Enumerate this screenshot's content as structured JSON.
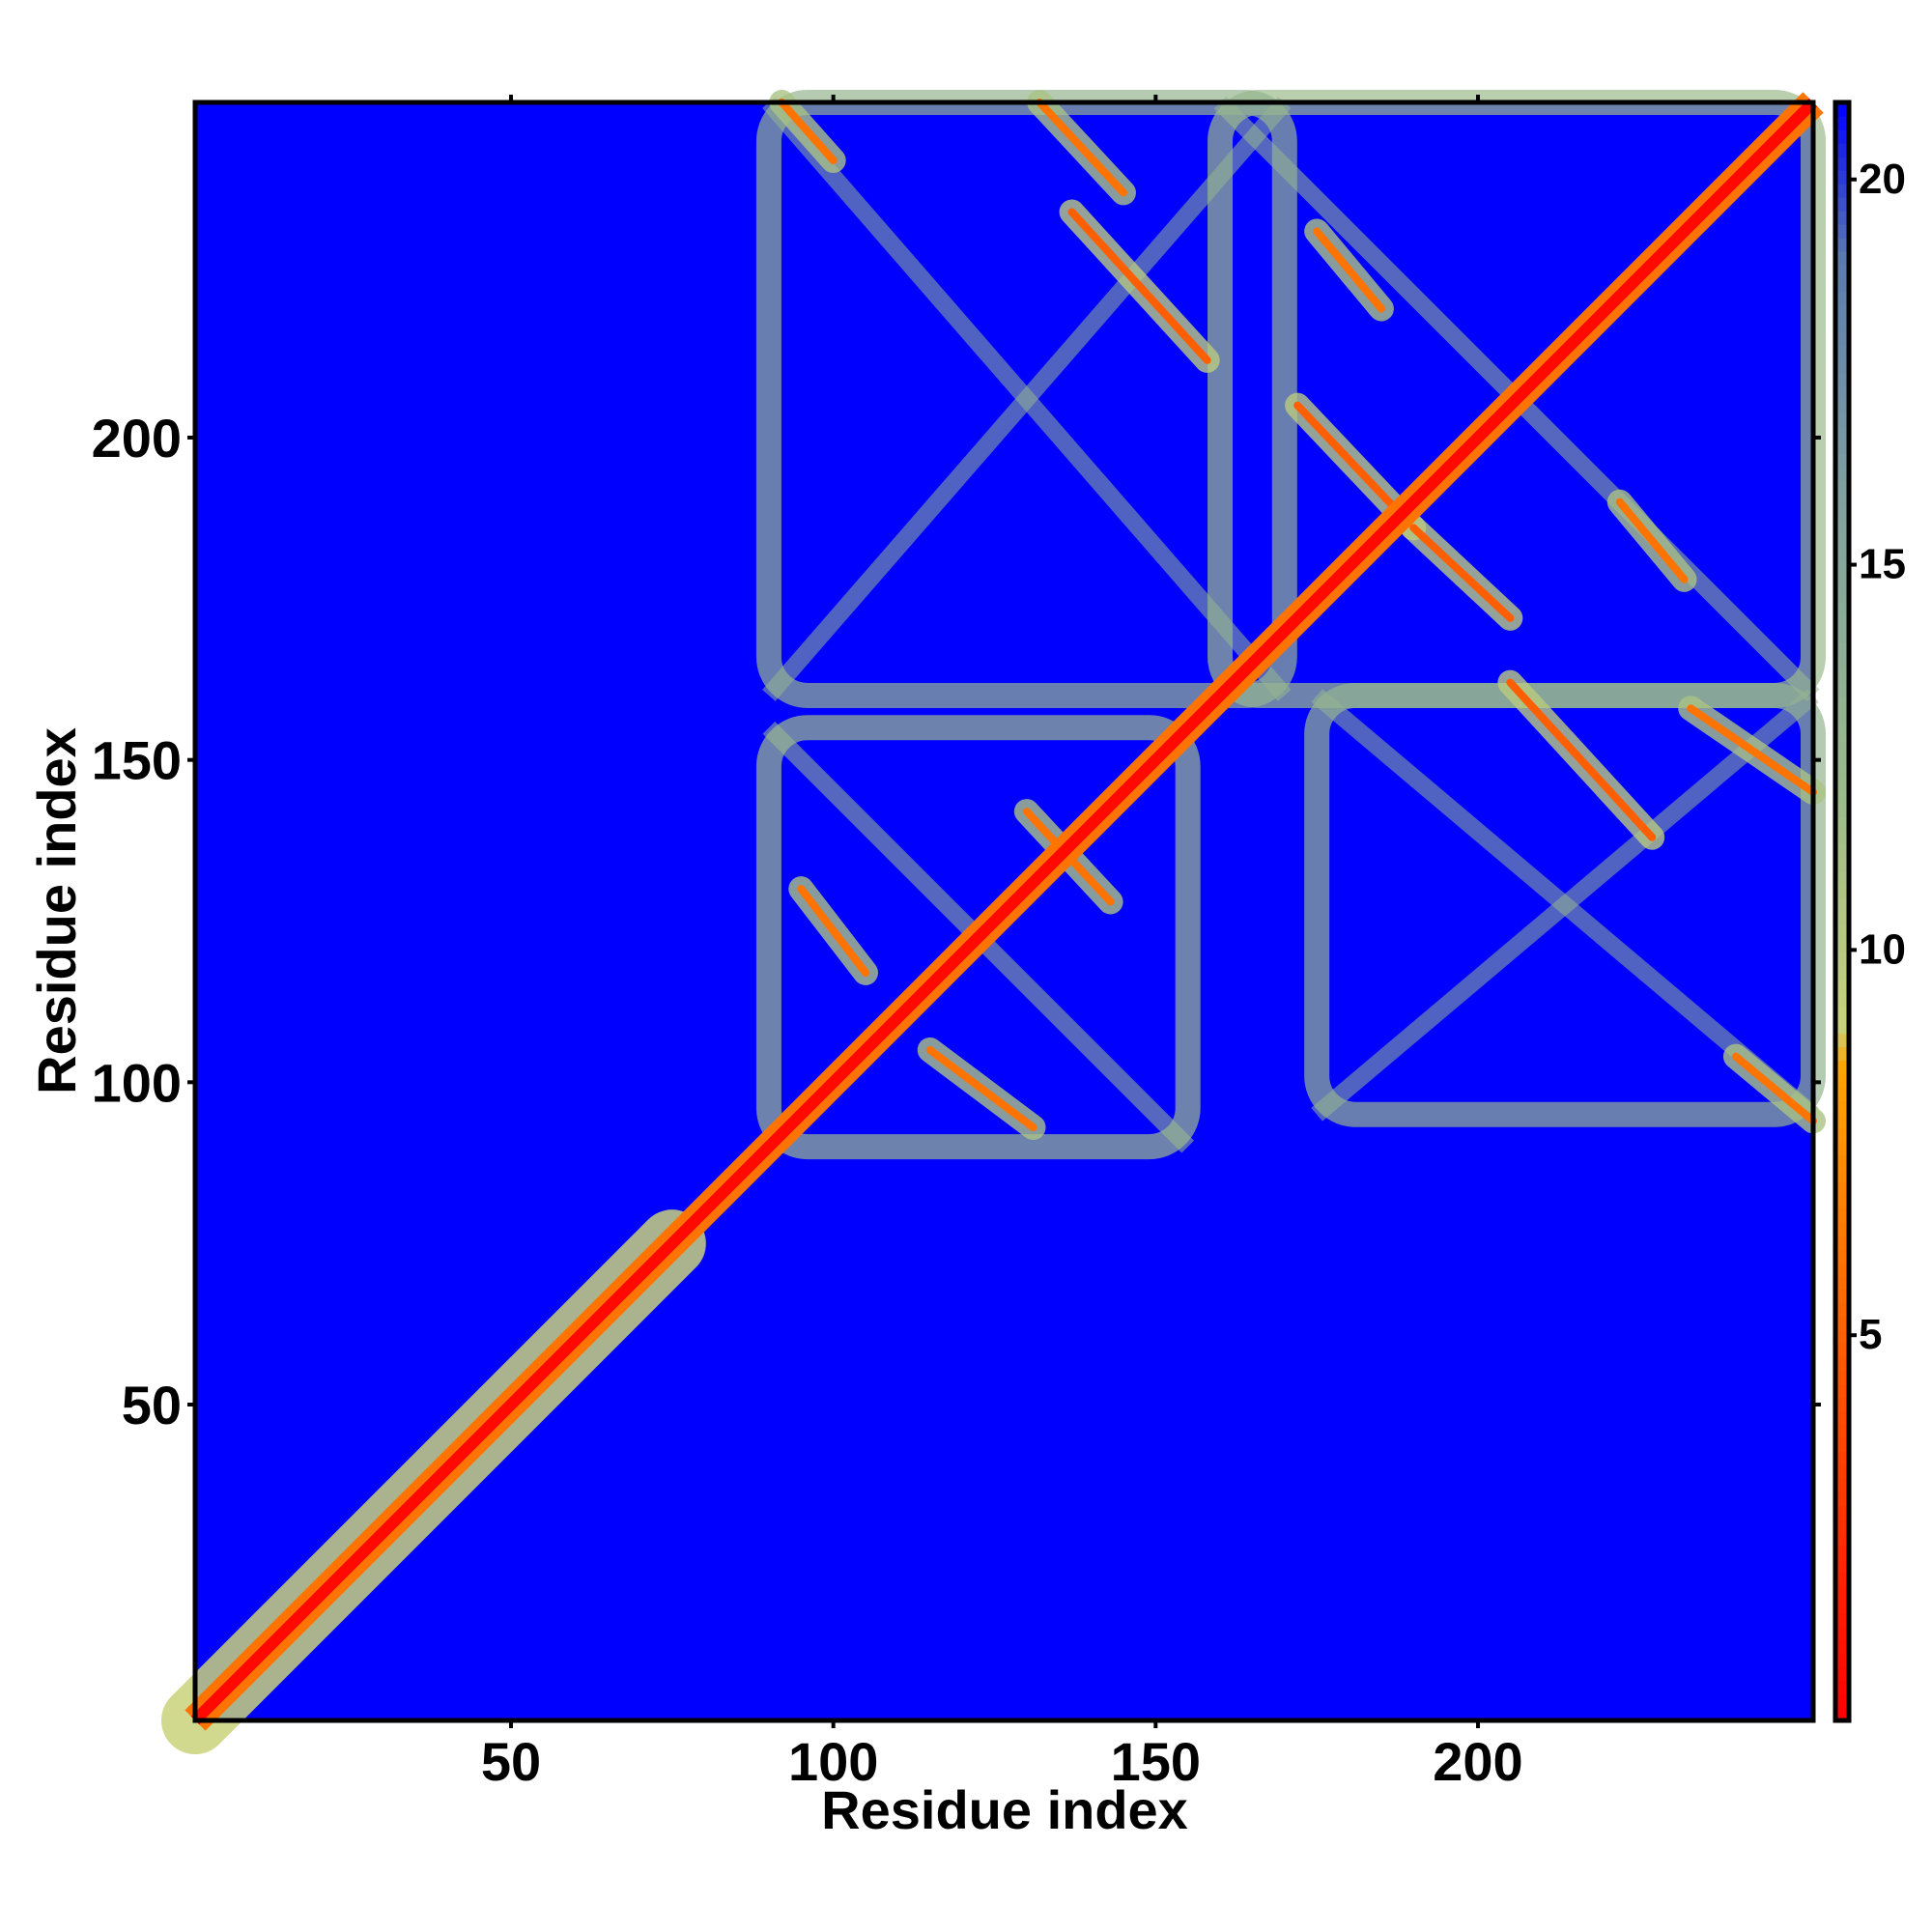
{
  "chart_data": {
    "type": "heatmap",
    "title": "",
    "xlabel": "Residue index",
    "ylabel": "Residue index",
    "n_residues": 252,
    "xlim": [
      1,
      252
    ],
    "ylim": [
      1,
      252
    ],
    "x_ticks": [
      50,
      100,
      150,
      200
    ],
    "y_ticks": [
      50,
      100,
      150,
      200
    ],
    "x_tick_labels": [
      "50",
      "100",
      "150",
      "200"
    ],
    "y_tick_labels": [
      "50",
      "100",
      "150",
      "200"
    ],
    "value_range": [
      0,
      21
    ],
    "colorbar": {
      "ticks": [
        5,
        10,
        15,
        20
      ],
      "tick_labels": [
        "5",
        "10",
        "15",
        "20"
      ],
      "range": [
        0,
        21
      ],
      "stops": [
        {
          "value": 0,
          "color": "#ff0000"
        },
        {
          "value": 4.5,
          "color": "#ff5500"
        },
        {
          "value": 8.5,
          "color": "#ffa500"
        },
        {
          "value": 9.0,
          "color": "#c8d27a"
        },
        {
          "value": 12.0,
          "color": "#9bbb8a"
        },
        {
          "value": 16.0,
          "color": "#7fa0a0"
        },
        {
          "value": 19.0,
          "color": "#5a7bb0"
        },
        {
          "value": 21,
          "color": "#0000ff"
        }
      ]
    },
    "background_color": "#0000ff",
    "regions": [
      {
        "name": "diagonal",
        "x_range": [
          1,
          252
        ],
        "y_range": [
          1,
          252
        ],
        "value": 0.5
      },
      {
        "name": "near-diagonal-band",
        "x_range": [
          1,
          75
        ],
        "y_range": [
          1,
          75
        ],
        "value": 9
      },
      {
        "name": "domain-1-block",
        "x_range": [
          90,
          155
        ],
        "y_range": [
          90,
          155
        ],
        "value": 12
      },
      {
        "name": "domain-2-block",
        "x_range": [
          160,
          252
        ],
        "y_range": [
          160,
          252
        ],
        "value": 12
      },
      {
        "name": "inter-domain-upper",
        "x_range": [
          90,
          170
        ],
        "y_range": [
          160,
          252
        ],
        "value": 13
      },
      {
        "name": "inter-domain-lower",
        "x_range": [
          175,
          252
        ],
        "y_range": [
          95,
          160
        ],
        "value": 13
      }
    ],
    "contact_lines": [
      {
        "from": [
          92,
          252
        ],
        "to": [
          100,
          243
        ],
        "value": 6
      },
      {
        "from": [
          132,
          252
        ],
        "to": [
          145,
          238
        ],
        "value": 6
      },
      {
        "from": [
          137,
          235
        ],
        "to": [
          158,
          212
        ],
        "value": 5
      },
      {
        "from": [
          175,
          232
        ],
        "to": [
          185,
          220
        ],
        "value": 6
      },
      {
        "from": [
          172,
          205
        ],
        "to": [
          190,
          186
        ],
        "value": 5
      },
      {
        "from": [
          190,
          186
        ],
        "to": [
          205,
          172
        ],
        "value": 5
      },
      {
        "from": [
          205,
          162
        ],
        "to": [
          227,
          138
        ],
        "value": 5
      },
      {
        "from": [
          222,
          190
        ],
        "to": [
          232,
          178
        ],
        "value": 6
      },
      {
        "from": [
          233,
          158
        ],
        "to": [
          252,
          145
        ],
        "value": 6
      },
      {
        "from": [
          240,
          104
        ],
        "to": [
          252,
          94
        ],
        "value": 6
      },
      {
        "from": [
          130,
          142
        ],
        "to": [
          143,
          128
        ],
        "value": 6
      },
      {
        "from": [
          95,
          130
        ],
        "to": [
          105,
          117
        ],
        "value": 6
      },
      {
        "from": [
          115,
          105
        ],
        "to": [
          131,
          93
        ],
        "value": 6
      }
    ]
  }
}
